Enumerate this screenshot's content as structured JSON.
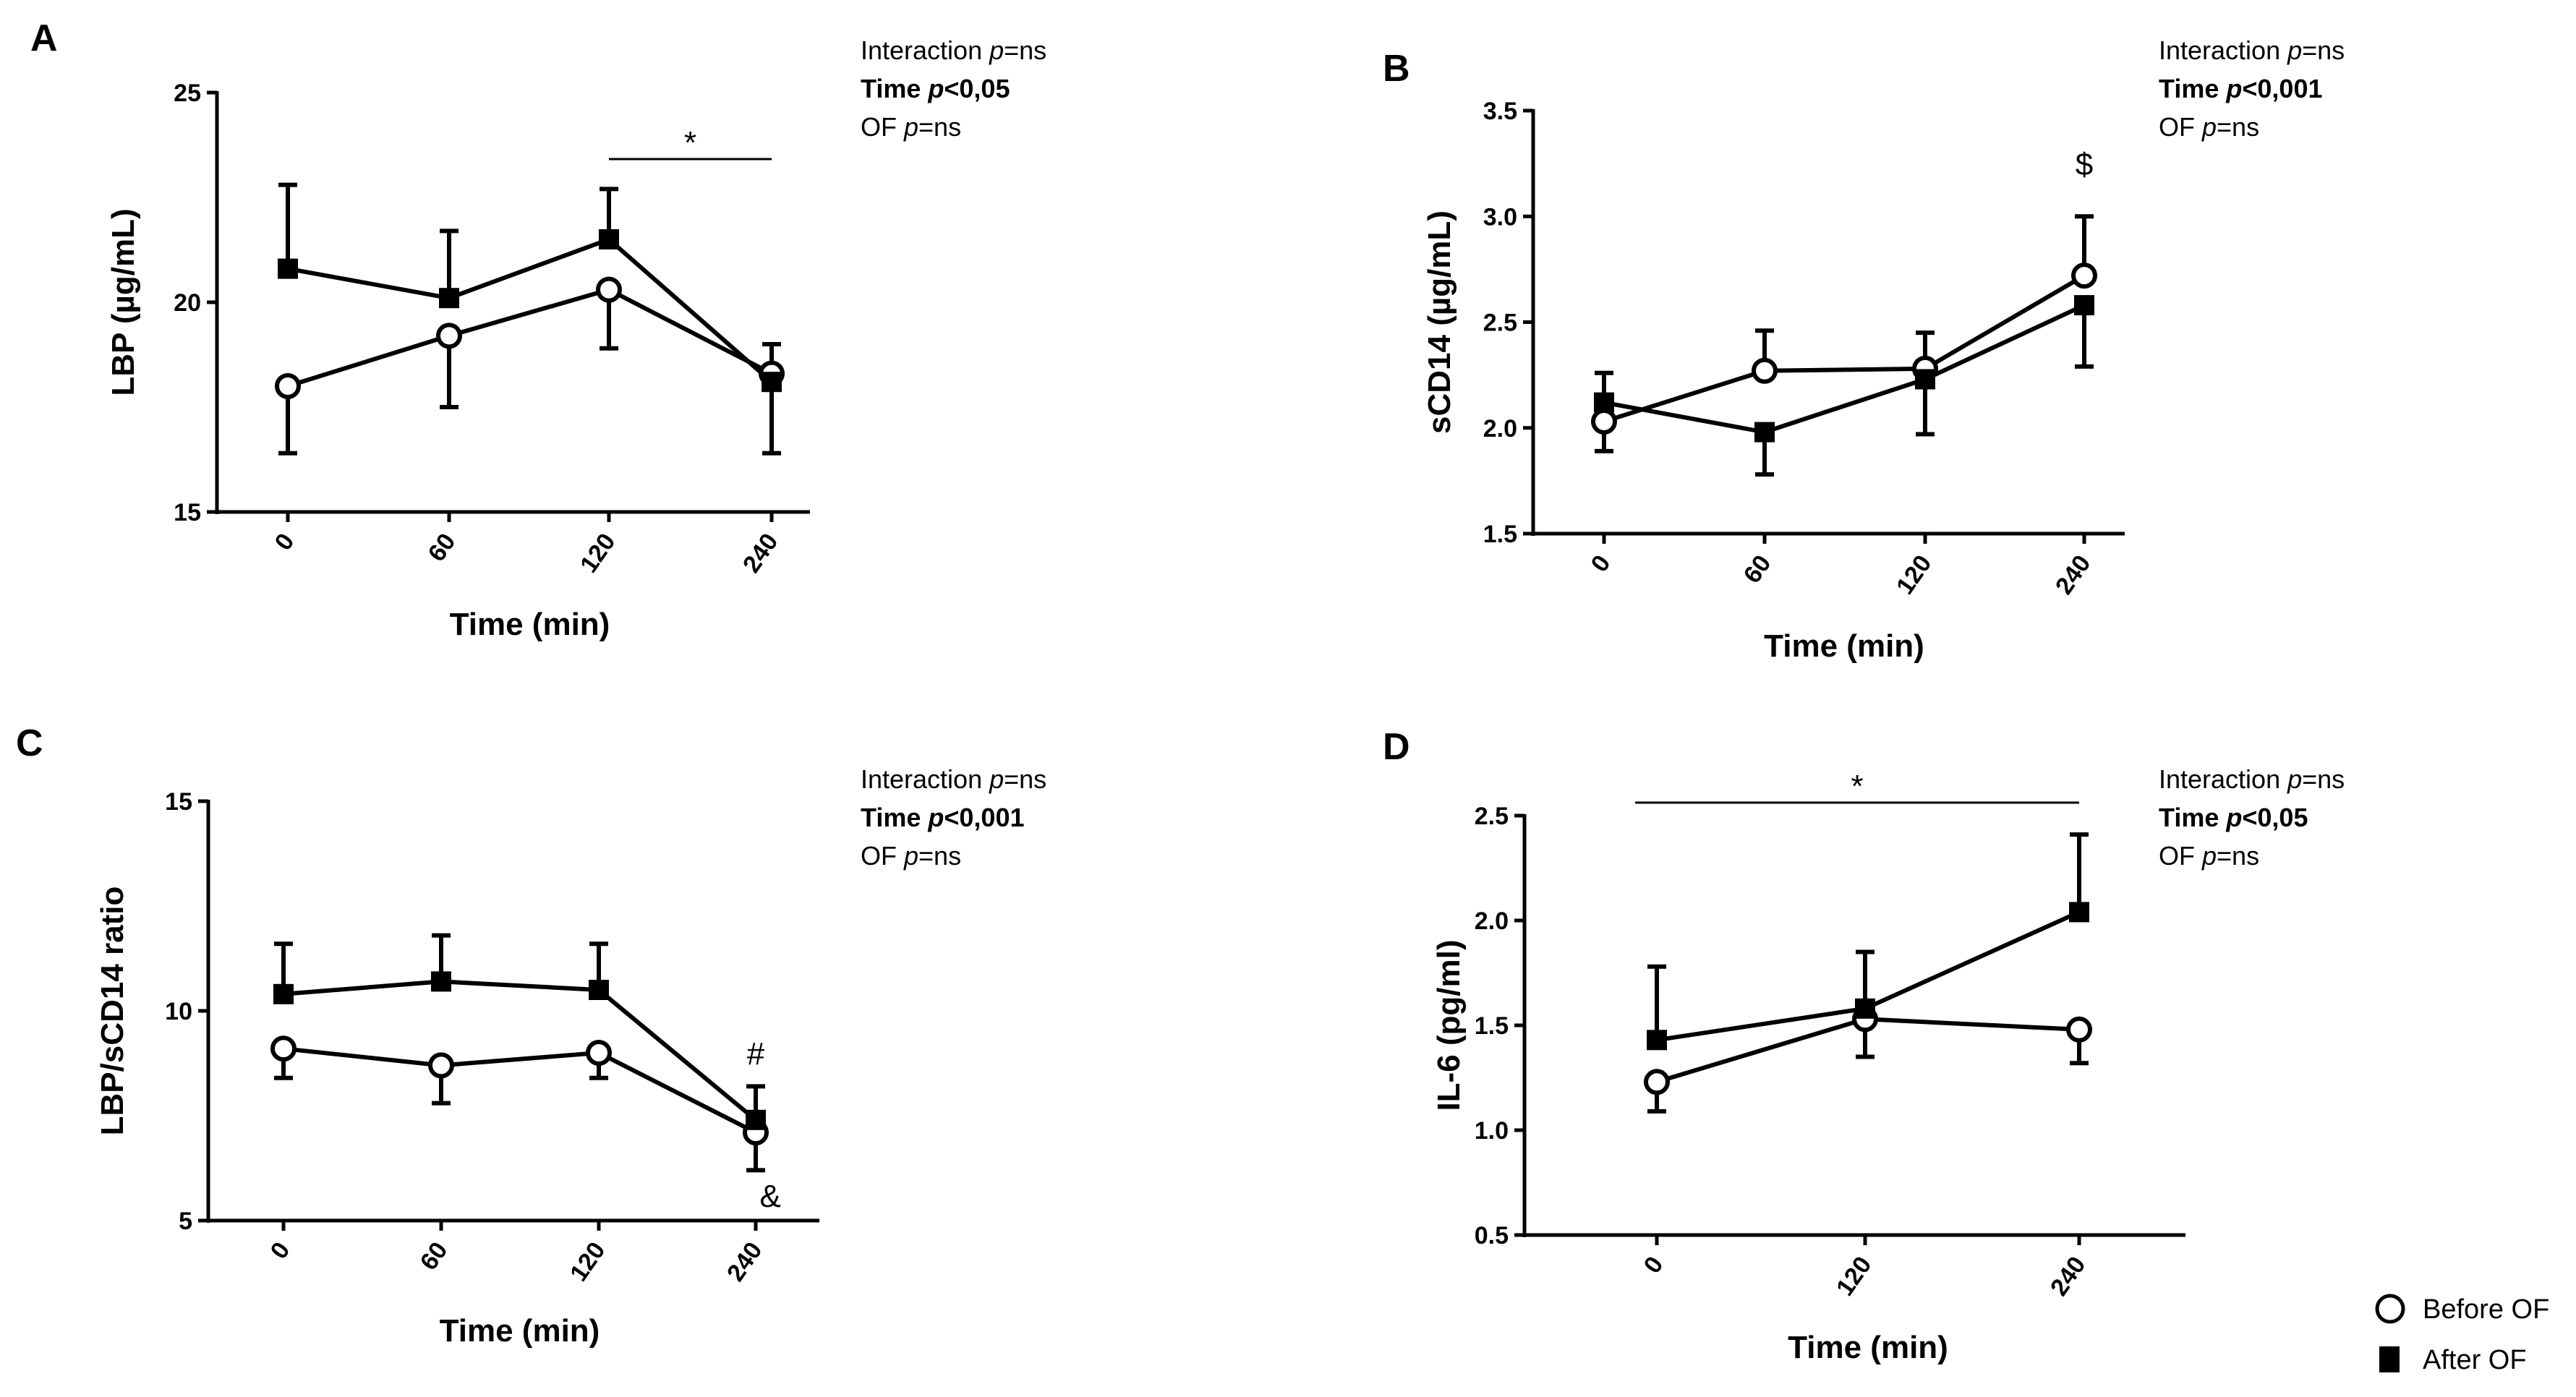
{
  "colors": {
    "line": "#000000",
    "background": "#ffffff",
    "marker_open_fill": "#ffffff"
  },
  "legend": {
    "before_label": "Before OF",
    "after_label": "After OF",
    "before_icon": "open-circle-marker",
    "after_icon": "filled-square-marker"
  },
  "chart_data": [
    {
      "id": "A",
      "type": "line",
      "panel_label": "A",
      "ylabel": "LBP (µg/mL)",
      "xlabel": "Time (min)",
      "categories": [
        "0",
        "60",
        "120",
        "240"
      ],
      "ylim": [
        15,
        25
      ],
      "yticks": [
        15,
        20,
        25
      ],
      "ytick_labels": [
        "15",
        "20",
        "25"
      ],
      "series": [
        {
          "name": "Before OF",
          "marker": "open-circle",
          "values": [
            18.0,
            19.2,
            20.3,
            18.3
          ],
          "err_low": [
            16.4,
            17.5,
            18.9,
            16.4
          ]
        },
        {
          "name": "After OF",
          "marker": "filled-square",
          "values": [
            20.8,
            20.1,
            21.5,
            18.1
          ],
          "err_high": [
            22.8,
            21.7,
            22.7,
            19.0
          ]
        }
      ],
      "stats": {
        "interaction": "Interaction p=ns",
        "time": "Time p<0,05",
        "of": "OF p=ns"
      },
      "annotations": [
        {
          "text": "*",
          "kind": "bracket",
          "from": "120",
          "to": "240"
        }
      ]
    },
    {
      "id": "B",
      "type": "line",
      "panel_label": "B",
      "ylabel": "sCD14 (µg/mL)",
      "xlabel": "Time (min)",
      "categories": [
        "0",
        "60",
        "120",
        "240"
      ],
      "ylim": [
        1.5,
        3.5
      ],
      "yticks": [
        1.5,
        2.0,
        2.5,
        3.0,
        3.5
      ],
      "ytick_labels": [
        "1.5",
        "2.0",
        "2.5",
        "3.0",
        "3.5"
      ],
      "series": [
        {
          "name": "Before OF",
          "marker": "open-circle",
          "values": [
            2.03,
            2.27,
            2.28,
            2.72
          ],
          "err_high": [
            2.26,
            2.46,
            2.45,
            3.0
          ]
        },
        {
          "name": "After OF",
          "marker": "filled-square",
          "values": [
            2.12,
            1.98,
            2.23,
            2.58
          ],
          "err_low": [
            1.89,
            1.78,
            1.97,
            2.29
          ]
        }
      ],
      "stats": {
        "interaction": "Interaction p=ns",
        "time": "Time p<0,001",
        "of": "OF p=ns"
      },
      "annotations": [
        {
          "text": "$",
          "kind": "point",
          "at": "240",
          "value": 3.25
        }
      ]
    },
    {
      "id": "C",
      "type": "line",
      "panel_label": "C",
      "ylabel": "LBP/sCD14 ratio",
      "xlabel": "Time (min)",
      "categories": [
        "0",
        "60",
        "120",
        "240"
      ],
      "ylim": [
        5,
        15
      ],
      "yticks": [
        5,
        10,
        15
      ],
      "ytick_labels": [
        "5",
        "10",
        "15"
      ],
      "series": [
        {
          "name": "Before OF",
          "marker": "open-circle",
          "values": [
            9.1,
            8.7,
            9.0,
            7.1
          ],
          "err_low": [
            8.4,
            7.8,
            8.4,
            6.2
          ]
        },
        {
          "name": "After OF",
          "marker": "filled-square",
          "values": [
            10.4,
            10.7,
            10.5,
            7.4
          ],
          "err_high": [
            11.6,
            11.8,
            11.6,
            8.2
          ]
        }
      ],
      "stats": {
        "interaction": "Interaction p=ns",
        "time": "Time p<0,001",
        "of": "OF p=ns"
      },
      "annotations": [
        {
          "text": "#",
          "kind": "point",
          "at": "240",
          "value": 9.0
        },
        {
          "text": "&",
          "kind": "point",
          "at": "240",
          "value": 5.6,
          "offset": "right"
        }
      ]
    },
    {
      "id": "D",
      "type": "line",
      "panel_label": "D",
      "ylabel": "IL-6 (pg/ml)",
      "xlabel": "Time (min)",
      "categories": [
        "0",
        "120",
        "240"
      ],
      "ylim": [
        0.5,
        2.5
      ],
      "yticks": [
        0.5,
        1.0,
        1.5,
        2.0,
        2.5
      ],
      "ytick_labels": [
        "0.5",
        "1.0",
        "1.5",
        "2.0",
        "2.5"
      ],
      "series": [
        {
          "name": "Before OF",
          "marker": "open-circle",
          "values": [
            1.23,
            1.53,
            1.48
          ],
          "err_low": [
            1.09,
            1.35,
            1.32
          ]
        },
        {
          "name": "After OF",
          "marker": "filled-square",
          "values": [
            1.43,
            1.58,
            2.04
          ],
          "err_high": [
            1.78,
            1.85,
            2.41
          ]
        }
      ],
      "stats": {
        "interaction": "Interaction p=ns",
        "time": "Time p<0,05",
        "of": "OF p=ns"
      },
      "annotations": [
        {
          "text": "*",
          "kind": "bracket",
          "from": "0",
          "to": "240"
        }
      ]
    }
  ]
}
